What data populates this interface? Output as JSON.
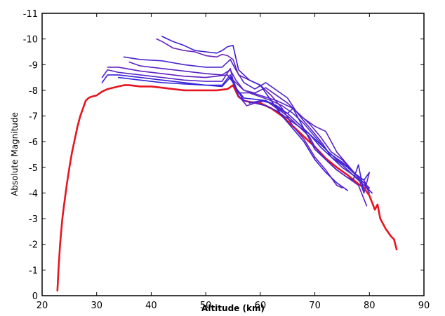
{
  "chart_data": {
    "type": "line",
    "title": "",
    "xlabel": "Altitude (km)",
    "ylabel": "Absolute Magnitude",
    "xlim": [
      20,
      90
    ],
    "ylim": [
      0,
      -11
    ],
    "y_inverted": true,
    "grid": false,
    "legend": "none",
    "x_ticks": [
      20,
      30,
      40,
      50,
      60,
      70,
      80,
      90
    ],
    "x_tick_labels": [
      "20",
      "30",
      "40",
      "50",
      "60",
      "70",
      "80",
      "90"
    ],
    "y_ticks": [
      0,
      -1,
      -2,
      -3,
      -4,
      -5,
      -6,
      -7,
      -8,
      -9,
      -10,
      -11
    ],
    "y_tick_labels": [
      "0",
      "-1",
      "-2",
      "-3",
      "-4",
      "-5",
      "-6",
      "-7",
      "-8",
      "-9",
      "-10",
      "-11"
    ],
    "series": [
      {
        "color": "#e8141e",
        "x": [
          22.8,
          23.0,
          23.3,
          23.7,
          24.0,
          24.5,
          25.0,
          25.5,
          26.0,
          26.5,
          27.0,
          27.5,
          28.0,
          28.5,
          29.0,
          30.0,
          31.0,
          32.0,
          33.0,
          34.0,
          35.0,
          36.0,
          38.0,
          40.0,
          42.0,
          44.0,
          46.0,
          48.0,
          50.0,
          52.0,
          54.0,
          55.0,
          56.0,
          57.0,
          58.0,
          60.0,
          62.0,
          64.0,
          66.0,
          68.0,
          70.0,
          72.0,
          74.0,
          76.0,
          78.0,
          79.0,
          80.0,
          81.0,
          81.5,
          82.0,
          83.0,
          84.0,
          84.5,
          85.0
        ],
        "y": [
          -0.2,
          -1.0,
          -2.0,
          -3.0,
          -3.5,
          -4.3,
          -5.0,
          -5.6,
          -6.1,
          -6.6,
          -7.0,
          -7.3,
          -7.6,
          -7.7,
          -7.75,
          -7.8,
          -7.95,
          -8.05,
          -8.1,
          -8.15,
          -8.2,
          -8.2,
          -8.15,
          -8.15,
          -8.1,
          -8.05,
          -8.0,
          -8.0,
          -8.0,
          -8.0,
          -8.05,
          -8.2,
          -7.75,
          -7.6,
          -7.55,
          -7.5,
          -7.3,
          -7.0,
          -6.6,
          -6.2,
          -5.8,
          -5.35,
          -5.0,
          -4.7,
          -4.35,
          -4.2,
          -3.9,
          -3.35,
          -3.55,
          -3.0,
          -2.6,
          -2.3,
          -2.2,
          -1.8
        ]
      },
      {
        "color": "#5a28c8",
        "x": [
          31.0,
          32.0,
          34.0,
          38.0,
          42.0,
          46.0,
          50.0,
          53.0,
          54.5,
          55.0,
          56.0,
          58.0,
          60.0,
          62.0,
          64.0,
          66.0,
          68.0,
          70.0,
          72.0,
          74.0,
          76.0,
          78.0,
          80.0
        ],
        "y": [
          -8.5,
          -8.8,
          -8.7,
          -8.6,
          -8.5,
          -8.4,
          -8.35,
          -8.35,
          -8.85,
          -8.4,
          -7.9,
          -7.9,
          -7.75,
          -7.6,
          -7.4,
          -7.1,
          -6.7,
          -6.2,
          -5.7,
          -5.3,
          -5.0,
          -4.6,
          -4.2
        ]
      },
      {
        "color": "#3b1fd8",
        "x": [
          31.0,
          32.0,
          34.0,
          38.0,
          42.0,
          46.0,
          50.0,
          53.0,
          54.5,
          55.5,
          57.0,
          59.0,
          61.0,
          63.0,
          65.0,
          67.0,
          69.0,
          71.0,
          73.0,
          75.0,
          77.0,
          79.0,
          80.5
        ],
        "y": [
          -8.3,
          -8.6,
          -8.6,
          -8.5,
          -8.4,
          -8.3,
          -8.2,
          -8.2,
          -8.6,
          -8.1,
          -7.6,
          -7.5,
          -7.4,
          -7.2,
          -6.9,
          -6.6,
          -6.3,
          -5.8,
          -5.4,
          -5.1,
          -4.7,
          -4.3,
          -4.0
        ]
      },
      {
        "color": "#6020c0",
        "x": [
          32.0,
          34.0,
          38.0,
          42.0,
          46.0,
          50.0,
          54.0,
          55.0,
          56.0,
          57.5,
          59.0,
          61.0,
          63.0,
          65.0,
          67.0,
          69.0,
          70.0,
          72.0,
          74.0,
          76.0,
          78.0,
          79.5
        ],
        "y": [
          -8.9,
          -8.9,
          -8.75,
          -8.65,
          -8.55,
          -8.5,
          -8.6,
          -8.3,
          -7.8,
          -7.4,
          -7.5,
          -7.6,
          -7.3,
          -7.0,
          -6.6,
          -6.2,
          -5.8,
          -5.3,
          -4.9,
          -4.6,
          -4.3,
          -3.5
        ]
      },
      {
        "color": "#4a24d0",
        "x": [
          35.0,
          38.0,
          42.0,
          46.0,
          50.0,
          53.0,
          54.5,
          55.5,
          57.0,
          59.0,
          61.0,
          63.0,
          65.0,
          66.5,
          68.0,
          70.0,
          71.5,
          73.0,
          75.0,
          77.0,
          79.0,
          80.0
        ],
        "y": [
          -9.3,
          -9.2,
          -9.15,
          -9.0,
          -8.9,
          -8.9,
          -9.2,
          -8.8,
          -8.3,
          -8.05,
          -8.3,
          -8.0,
          -7.7,
          -7.2,
          -6.8,
          -6.3,
          -5.9,
          -5.4,
          -5.0,
          -4.7,
          -4.4,
          -4.0
        ]
      },
      {
        "color": "#5a22c4",
        "x": [
          36.0,
          38.0,
          42.0,
          46.0,
          50.0,
          53.0,
          54.5,
          55.5,
          57.0,
          59.0,
          61.0,
          63.0,
          65.0,
          67.0,
          69.0,
          71.0,
          73.0,
          75.0,
          77.0,
          79.0,
          80.0
        ],
        "y": [
          -9.1,
          -8.95,
          -8.85,
          -8.75,
          -8.65,
          -8.6,
          -8.8,
          -8.4,
          -8.0,
          -7.9,
          -8.1,
          -7.8,
          -7.5,
          -7.1,
          -6.7,
          -6.2,
          -5.6,
          -5.3,
          -4.8,
          -4.5,
          -4.1
        ]
      },
      {
        "color": "#3024dc",
        "x": [
          34.0,
          38.0,
          42.0,
          46.0,
          50.0,
          53.0,
          54.5,
          55.5,
          57.0,
          59.0,
          61.0,
          63.0,
          65.0,
          67.0,
          69.0,
          71.0,
          73.0,
          75.0,
          77.0,
          79.0,
          80.0
        ],
        "y": [
          -8.5,
          -8.4,
          -8.3,
          -8.25,
          -8.2,
          -8.15,
          -8.5,
          -8.1,
          -7.7,
          -7.65,
          -7.6,
          -7.4,
          -7.1,
          -6.7,
          -6.3,
          -5.9,
          -5.5,
          -5.2,
          -4.8,
          -4.5,
          -4.8
        ]
      },
      {
        "color": "#6a20b8",
        "x": [
          41.0,
          42.0,
          44.0,
          46.0,
          48.0,
          50.0,
          52.0,
          53.0,
          54.0,
          55.0,
          56.0,
          58.0,
          60.0,
          62.0,
          64.0,
          66.0,
          68.0,
          70.0,
          72.0,
          74.0,
          75.0
        ],
        "y": [
          -10.0,
          -9.9,
          -9.65,
          -9.55,
          -9.5,
          -9.35,
          -9.3,
          -9.4,
          -9.35,
          -9.2,
          -8.6,
          -8.4,
          -8.2,
          -7.8,
          -7.3,
          -6.6,
          -6.1,
          -5.4,
          -4.9,
          -4.3,
          -4.2
        ]
      },
      {
        "color": "#3a1ed6",
        "x": [
          42.0,
          43.0,
          44.0,
          46.0,
          48.0,
          50.0,
          52.0,
          53.0,
          54.0,
          55.0,
          56.0,
          58.0,
          60.0,
          62.0,
          64.0,
          66.0,
          68.0,
          70.0,
          72.0,
          74.0,
          76.0
        ],
        "y": [
          -10.1,
          -10.0,
          -9.9,
          -9.75,
          -9.55,
          -9.5,
          -9.45,
          -9.55,
          -9.7,
          -9.75,
          -8.8,
          -8.4,
          -8.2,
          -7.6,
          -7.0,
          -6.5,
          -6.0,
          -5.3,
          -4.8,
          -4.4,
          -4.1
        ]
      },
      {
        "color": "#5c26c8",
        "x": [
          55.0,
          57.0,
          60.0,
          63.0,
          66.0,
          68.0,
          70.0,
          71.0,
          72.0,
          74.0,
          76.0,
          78.0,
          79.0,
          80.0
        ],
        "y": [
          -8.4,
          -8.0,
          -7.8,
          -7.6,
          -7.3,
          -6.9,
          -6.6,
          -6.5,
          -6.4,
          -5.6,
          -5.1,
          -4.6,
          -4.0,
          -4.8
        ]
      },
      {
        "color": "#4420d2",
        "x": [
          58.0,
          60.0,
          62.0,
          64.0,
          65.0,
          66.0,
          68.0,
          70.0,
          72.0,
          74.0,
          76.0,
          77.0,
          78.0,
          79.0
        ],
        "y": [
          -7.5,
          -7.6,
          -7.5,
          -7.2,
          -7.1,
          -7.3,
          -6.5,
          -5.7,
          -5.3,
          -4.9,
          -4.6,
          -4.5,
          -5.1,
          -4.0
        ]
      }
    ]
  }
}
